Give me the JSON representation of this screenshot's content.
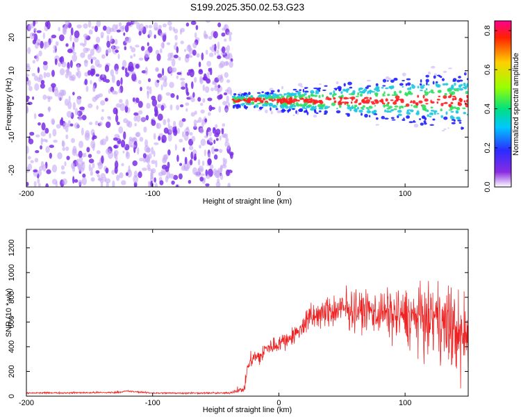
{
  "figure_title": "S199.2025.350.02.53.G23",
  "colors": {
    "snr_line": "#ee2222",
    "blob_noise": "#7a2fe6",
    "blob_light": "#c6a8f5",
    "ridge_red": "#ff2020",
    "ridge_green": "#30e060",
    "ridge_cyan": "#20c8e0",
    "ridge_blue": "#2020ff"
  },
  "chart_data": [
    {
      "type": "heatmap",
      "title": "",
      "xlabel": "Height of straight line (km)",
      "ylabel": "Frequency (Hz)",
      "xlim": [
        -200,
        150
      ],
      "ylim": [
        -25,
        25
      ],
      "x_ticks": [
        -200,
        -100,
        0,
        100
      ],
      "x_tick_labels": [
        "-200",
        "-100",
        "0",
        "100"
      ],
      "y_ticks": [
        -20,
        -10,
        0,
        10,
        20
      ],
      "y_tick_labels": [
        "-20",
        "-10",
        "0",
        "10",
        "20"
      ],
      "signal_onset_km": -37,
      "ridge_frequency_hz": 1,
      "description_series": {
        "noise_region_km": [
          -200,
          -37
        ],
        "ridge_region_km": [
          -37,
          150
        ]
      },
      "colorbar": {
        "label": "Normalized spectral amplitude",
        "range": [
          0,
          0.85
        ],
        "ticks": [
          0,
          0.2,
          0.4,
          0.6,
          0.8
        ],
        "tick_labels": [
          "0.0",
          "0.2",
          "0.4",
          "0.6",
          "0.8"
        ],
        "stops": [
          "#ffffff",
          "#8a2be2",
          "#2b2bff",
          "#00c8ff",
          "#00e080",
          "#9aff00",
          "#ffd000",
          "#ff2000",
          "#ff0090"
        ]
      }
    },
    {
      "type": "line",
      "title": "",
      "xlabel": "Height of straight line (km)",
      "ylabel": "SNR (10 * v/v)",
      "xlim": [
        -200,
        150
      ],
      "ylim": [
        0,
        1350
      ],
      "x_ticks": [
        -200,
        -100,
        0,
        100
      ],
      "x_tick_labels": [
        "-200",
        "-100",
        "0",
        "100"
      ],
      "y_ticks": [
        0,
        200,
        400,
        600,
        800,
        1000,
        1200
      ],
      "y_tick_labels": [
        "0",
        "200",
        "400",
        "600",
        "800",
        "1000",
        "1200"
      ],
      "envelope": {
        "x": [
          -200,
          -130,
          -120,
          -100,
          -40,
          -27,
          -25,
          -22,
          -15,
          -10,
          0,
          10,
          18,
          20,
          30,
          40,
          50,
          60,
          80,
          100,
          120,
          130,
          140,
          150
        ],
        "mean": [
          25,
          30,
          40,
          25,
          25,
          60,
          230,
          300,
          320,
          380,
          430,
          480,
          540,
          600,
          650,
          680,
          700,
          700,
          680,
          650,
          620,
          600,
          520,
          480
        ],
        "spread": [
          10,
          10,
          10,
          10,
          10,
          40,
          60,
          80,
          100,
          100,
          100,
          100,
          120,
          150,
          160,
          180,
          200,
          220,
          260,
          320,
          380,
          450,
          500,
          520
        ]
      }
    }
  ]
}
